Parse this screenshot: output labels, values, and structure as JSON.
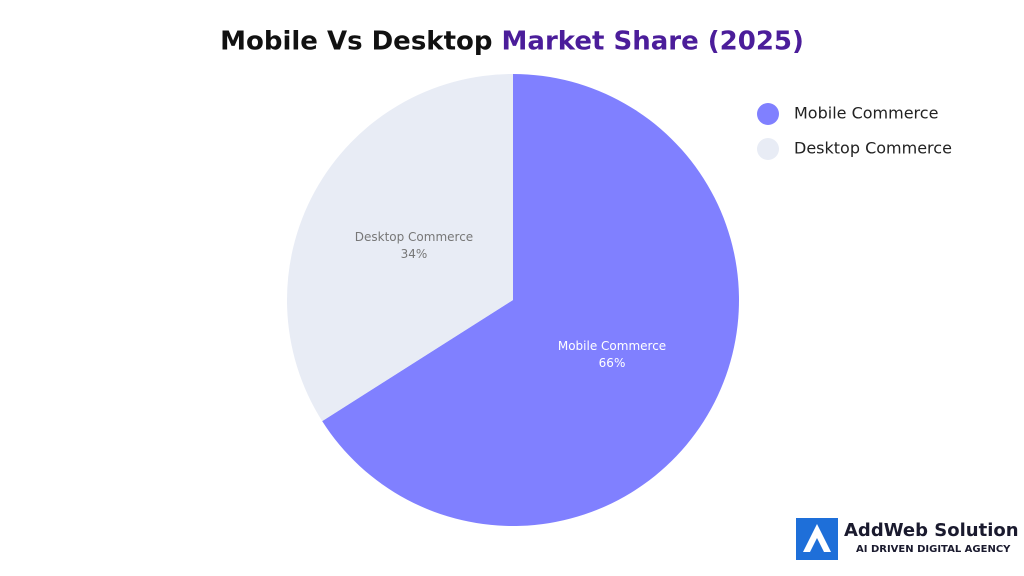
{
  "chart_data": {
    "type": "pie",
    "title": "Mobile Vs Desktop Market Share (2025)",
    "categories": [
      "Mobile Commerce",
      "Desktop Commerce"
    ],
    "values": [
      66,
      34
    ],
    "value_labels": [
      "66%",
      "34%"
    ],
    "colors": [
      "#8080ff",
      "#e8ecf5"
    ],
    "legend": "top-right"
  },
  "branding": {
    "name": "AddWeb Solution",
    "tagline": "AI DRIVEN DIGITAL AGENCY"
  }
}
